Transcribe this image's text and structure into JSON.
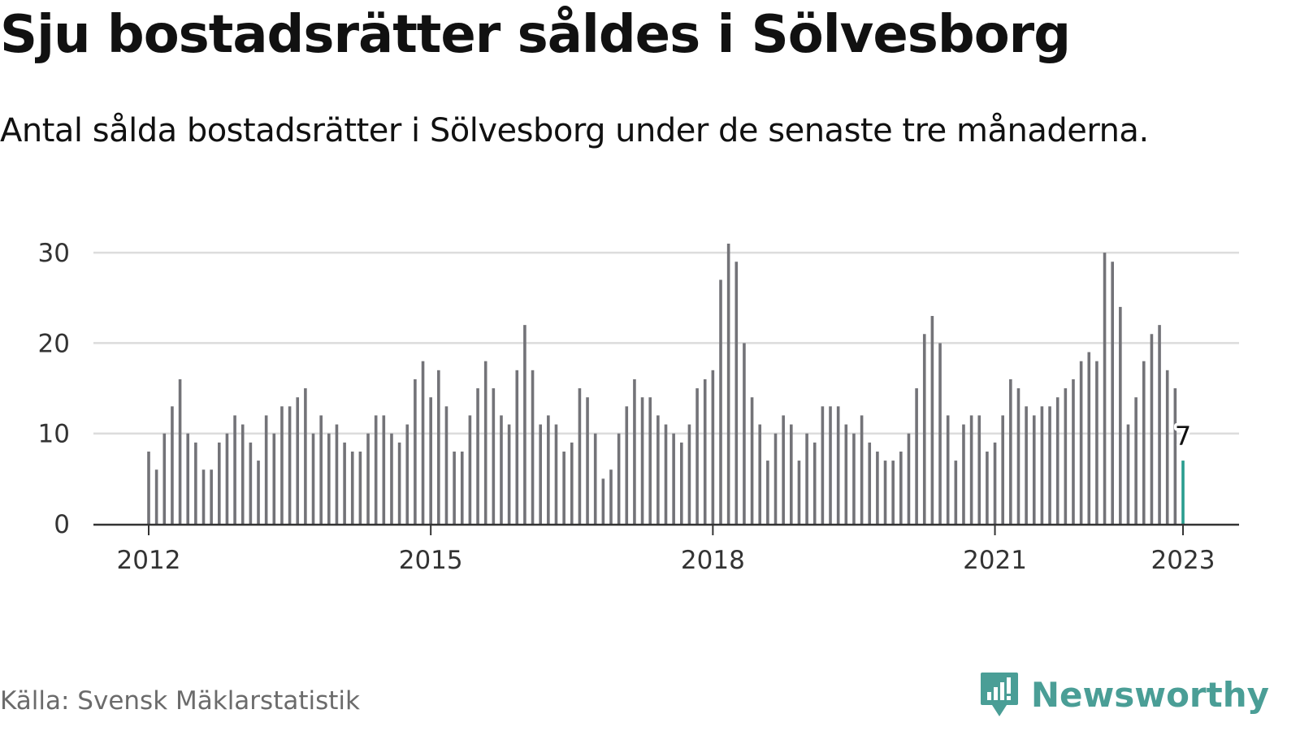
{
  "header": {
    "title": "Sju bostadsrätter såldes i Sölvesborg",
    "subtitle": "Antal sålda bostadsrätter i Sölvesborg under de senaste tre månaderna."
  },
  "footer": {
    "source": "Källa: Svensk Mäklarstatistik",
    "brand": "Newsworthy"
  },
  "colors": {
    "bar": "#737378",
    "highlight": "#2a9d8f",
    "grid": "#dcdcdc",
    "axis": "#333333",
    "brand": "#4a9e96"
  },
  "icons": {
    "logo": "newsworthy-logo-icon"
  },
  "chart_data": {
    "type": "bar",
    "x_start": "2012-01",
    "x_end": "2023-01",
    "x_ticks": [
      "2012",
      "2015",
      "2018",
      "2021",
      "2023"
    ],
    "y_ticks": [
      0,
      10,
      20,
      30
    ],
    "ylim": [
      0,
      31
    ],
    "grid": true,
    "values": [
      8,
      6,
      10,
      13,
      16,
      10,
      9,
      6,
      6,
      9,
      10,
      12,
      11,
      9,
      7,
      12,
      10,
      13,
      13,
      14,
      15,
      10,
      12,
      10,
      11,
      9,
      8,
      8,
      10,
      12,
      12,
      10,
      9,
      11,
      16,
      18,
      14,
      17,
      13,
      8,
      8,
      12,
      15,
      18,
      15,
      12,
      11,
      17,
      22,
      17,
      11,
      12,
      11,
      8,
      9,
      15,
      14,
      10,
      5,
      6,
      10,
      13,
      16,
      14,
      14,
      12,
      11,
      10,
      9,
      11,
      15,
      16,
      17,
      27,
      31,
      29,
      20,
      14,
      11,
      7,
      10,
      12,
      11,
      7,
      10,
      9,
      13,
      13,
      13,
      11,
      10,
      12,
      9,
      8,
      7,
      7,
      8,
      10,
      15,
      21,
      23,
      20,
      12,
      7,
      11,
      12,
      12,
      8,
      9,
      12,
      16,
      15,
      13,
      12,
      13,
      13,
      14,
      15,
      16,
      18,
      19,
      18,
      30,
      29,
      24,
      11,
      14,
      18,
      21,
      22,
      17,
      15,
      7
    ],
    "highlight_label": "7"
  }
}
